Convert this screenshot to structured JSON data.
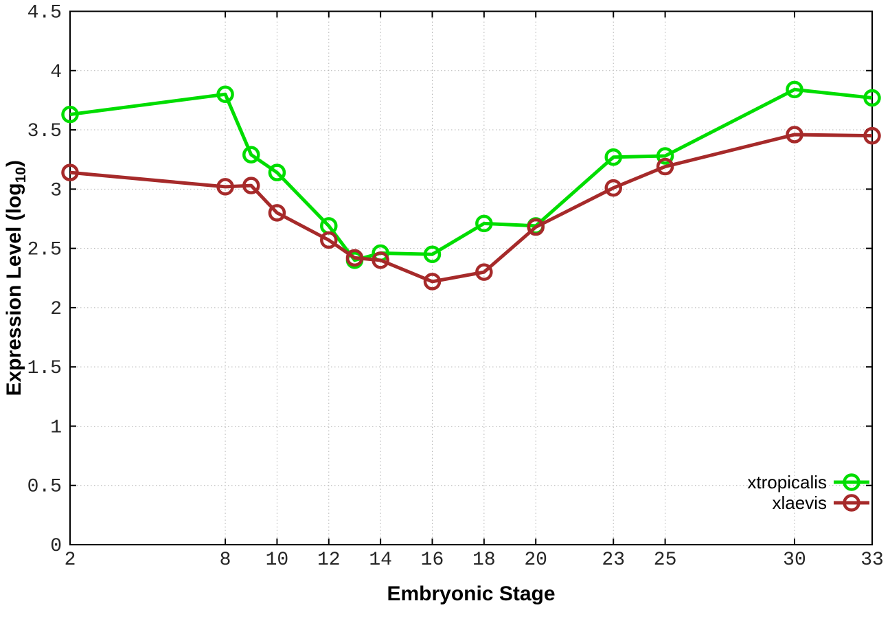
{
  "chart_data": {
    "type": "line",
    "title": "",
    "xlabel": "Embryonic Stage",
    "ylabel": "Expression Level (log10)",
    "ylabel_parts": {
      "prefix": "Expression Level (log",
      "subscript": "10",
      "suffix": ")"
    },
    "xlim": [
      2,
      33
    ],
    "ylim": [
      0,
      4.5
    ],
    "x_ticks": [
      2,
      8,
      10,
      12,
      14,
      16,
      18,
      20,
      23,
      25,
      30,
      33
    ],
    "y_ticks": [
      0,
      0.5,
      1,
      1.5,
      2,
      2.5,
      3,
      3.5,
      4,
      4.5
    ],
    "grid": true,
    "grid_style": "dotted",
    "legend_position": "bottom-right",
    "marker": "open-circle",
    "x": [
      2,
      8,
      9,
      10,
      12,
      13,
      14,
      16,
      18,
      20,
      23,
      25,
      30,
      33
    ],
    "series": [
      {
        "name": "xtropicalis",
        "color": "#00dd00",
        "values": [
          3.63,
          3.8,
          3.29,
          3.14,
          2.69,
          2.4,
          2.46,
          2.45,
          2.71,
          2.69,
          3.27,
          3.28,
          3.84,
          3.77
        ]
      },
      {
        "name": "xlaevis",
        "color": "#a62a2a",
        "values": [
          3.14,
          3.02,
          3.03,
          2.8,
          2.57,
          2.42,
          2.4,
          2.22,
          2.3,
          2.68,
          3.01,
          3.19,
          3.46,
          3.45
        ]
      }
    ]
  },
  "colors": {
    "background": "#ffffff",
    "border": "#000000",
    "grid": "#b3b3b3",
    "tick_label": "#262626"
  }
}
